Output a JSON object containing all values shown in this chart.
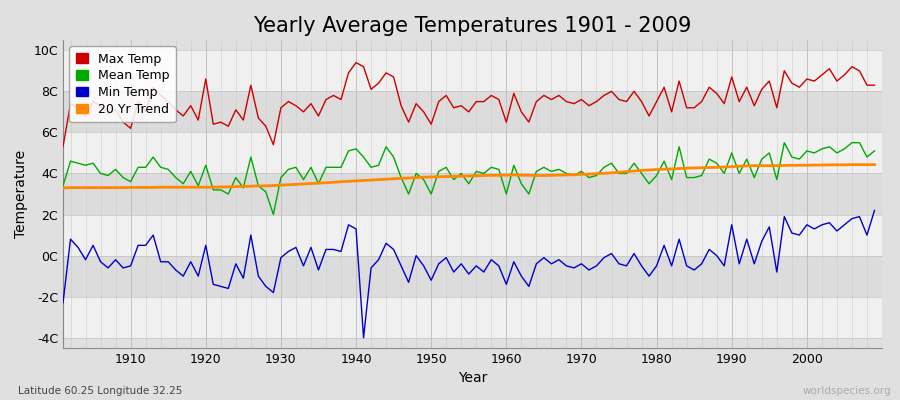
{
  "title": "Yearly Average Temperatures 1901 - 2009",
  "xlabel": "Year",
  "ylabel": "Temperature",
  "bottom_left": "Latitude 60.25 Longitude 32.25",
  "bottom_right": "worldspecies.org",
  "years": [
    1901,
    1902,
    1903,
    1904,
    1905,
    1906,
    1907,
    1908,
    1909,
    1910,
    1911,
    1912,
    1913,
    1914,
    1915,
    1916,
    1917,
    1918,
    1919,
    1920,
    1921,
    1922,
    1923,
    1924,
    1925,
    1926,
    1927,
    1928,
    1929,
    1930,
    1931,
    1932,
    1933,
    1934,
    1935,
    1936,
    1937,
    1938,
    1939,
    1940,
    1941,
    1942,
    1943,
    1944,
    1945,
    1946,
    1947,
    1948,
    1949,
    1950,
    1951,
    1952,
    1953,
    1954,
    1955,
    1956,
    1957,
    1958,
    1959,
    1960,
    1961,
    1962,
    1963,
    1964,
    1965,
    1966,
    1967,
    1968,
    1969,
    1970,
    1971,
    1972,
    1973,
    1974,
    1975,
    1976,
    1977,
    1978,
    1979,
    1980,
    1981,
    1982,
    1983,
    1984,
    1985,
    1986,
    1987,
    1988,
    1989,
    1990,
    1991,
    1992,
    1993,
    1994,
    1995,
    1996,
    1997,
    1998,
    1999,
    2000,
    2001,
    2002,
    2003,
    2004,
    2005,
    2006,
    2007,
    2008,
    2009
  ],
  "max_temp": [
    5.3,
    7.4,
    7.2,
    6.8,
    7.5,
    7.3,
    6.9,
    7.1,
    6.5,
    6.2,
    7.5,
    7.0,
    8.2,
    7.8,
    7.5,
    7.1,
    6.8,
    7.3,
    6.6,
    8.6,
    6.4,
    6.5,
    6.3,
    7.1,
    6.6,
    8.3,
    6.7,
    6.3,
    5.4,
    7.2,
    7.5,
    7.3,
    7.0,
    7.4,
    6.8,
    7.6,
    7.8,
    7.6,
    8.9,
    9.4,
    9.2,
    8.1,
    8.4,
    8.9,
    8.7,
    7.3,
    6.5,
    7.4,
    7.0,
    6.4,
    7.5,
    7.8,
    7.2,
    7.3,
    7.0,
    7.5,
    7.5,
    7.8,
    7.6,
    6.5,
    7.9,
    7.0,
    6.5,
    7.5,
    7.8,
    7.6,
    7.8,
    7.5,
    7.4,
    7.6,
    7.3,
    7.5,
    7.8,
    8.0,
    7.6,
    7.5,
    8.0,
    7.5,
    6.8,
    7.5,
    8.2,
    7.0,
    8.5,
    7.2,
    7.2,
    7.5,
    8.2,
    7.9,
    7.4,
    8.7,
    7.5,
    8.2,
    7.3,
    8.1,
    8.5,
    7.2,
    9.0,
    8.4,
    8.2,
    8.6,
    8.5,
    8.8,
    9.1,
    8.5,
    8.8,
    9.2,
    9.0,
    8.3,
    8.3
  ],
  "mean_temp": [
    3.4,
    4.6,
    4.5,
    4.4,
    4.5,
    4.0,
    3.9,
    4.2,
    3.8,
    3.6,
    4.3,
    4.3,
    4.8,
    4.3,
    4.2,
    3.8,
    3.5,
    4.1,
    3.4,
    4.4,
    3.2,
    3.2,
    3.0,
    3.8,
    3.3,
    4.8,
    3.4,
    3.1,
    2.0,
    3.8,
    4.2,
    4.3,
    3.7,
    4.3,
    3.5,
    4.3,
    4.3,
    4.3,
    5.1,
    5.2,
    4.8,
    4.3,
    4.4,
    5.3,
    4.8,
    3.8,
    3.0,
    4.0,
    3.7,
    3.0,
    4.1,
    4.3,
    3.7,
    4.0,
    3.5,
    4.1,
    4.0,
    4.3,
    4.2,
    3.0,
    4.4,
    3.5,
    3.0,
    4.1,
    4.3,
    4.1,
    4.2,
    4.0,
    3.9,
    4.1,
    3.8,
    3.9,
    4.3,
    4.5,
    4.0,
    4.0,
    4.5,
    4.0,
    3.5,
    3.9,
    4.6,
    3.7,
    5.3,
    3.8,
    3.8,
    3.9,
    4.7,
    4.5,
    4.0,
    5.0,
    4.0,
    4.7,
    3.8,
    4.7,
    5.0,
    3.7,
    5.5,
    4.8,
    4.7,
    5.1,
    5.0,
    5.2,
    5.3,
    5.0,
    5.2,
    5.5,
    5.5,
    4.8,
    5.1
  ],
  "min_temp": [
    -2.3,
    0.8,
    0.4,
    -0.2,
    0.5,
    -0.3,
    -0.6,
    -0.2,
    -0.6,
    -0.5,
    0.5,
    0.5,
    1.0,
    -0.3,
    -0.3,
    -0.7,
    -1.0,
    -0.3,
    -1.0,
    0.5,
    -1.4,
    -1.5,
    -1.6,
    -0.4,
    -1.1,
    1.0,
    -1.0,
    -1.5,
    -1.8,
    -0.1,
    0.2,
    0.4,
    -0.5,
    0.4,
    -0.7,
    0.3,
    0.3,
    0.2,
    1.5,
    1.3,
    -4.0,
    -0.6,
    -0.2,
    0.6,
    0.3,
    -0.5,
    -1.3,
    0.0,
    -0.5,
    -1.2,
    -0.4,
    -0.1,
    -0.8,
    -0.4,
    -0.9,
    -0.5,
    -0.8,
    -0.2,
    -0.5,
    -1.4,
    -0.3,
    -1.0,
    -1.5,
    -0.4,
    -0.1,
    -0.4,
    -0.2,
    -0.5,
    -0.6,
    -0.4,
    -0.7,
    -0.5,
    -0.1,
    0.1,
    -0.4,
    -0.5,
    0.1,
    -0.5,
    -1.0,
    -0.5,
    0.5,
    -0.5,
    0.8,
    -0.5,
    -0.7,
    -0.4,
    0.3,
    0.0,
    -0.5,
    1.5,
    -0.4,
    0.8,
    -0.4,
    0.7,
    1.4,
    -0.8,
    1.9,
    1.1,
    1.0,
    1.5,
    1.3,
    1.5,
    1.6,
    1.2,
    1.5,
    1.8,
    1.9,
    1.0,
    2.2
  ],
  "trend": [
    3.3,
    3.31,
    3.31,
    3.31,
    3.31,
    3.31,
    3.31,
    3.31,
    3.31,
    3.32,
    3.32,
    3.32,
    3.32,
    3.33,
    3.33,
    3.33,
    3.33,
    3.33,
    3.33,
    3.33,
    3.33,
    3.34,
    3.35,
    3.36,
    3.37,
    3.38,
    3.39,
    3.4,
    3.41,
    3.43,
    3.45,
    3.47,
    3.49,
    3.51,
    3.53,
    3.55,
    3.57,
    3.6,
    3.62,
    3.64,
    3.66,
    3.68,
    3.7,
    3.72,
    3.74,
    3.76,
    3.78,
    3.8,
    3.82,
    3.83,
    3.84,
    3.85,
    3.86,
    3.87,
    3.88,
    3.89,
    3.9,
    3.91,
    3.91,
    3.92,
    3.93,
    3.92,
    3.91,
    3.9,
    3.9,
    3.91,
    3.92,
    3.93,
    3.94,
    3.96,
    3.97,
    3.99,
    4.01,
    4.03,
    4.06,
    4.09,
    4.12,
    4.15,
    4.17,
    4.19,
    4.21,
    4.22,
    4.24,
    4.26,
    4.27,
    4.28,
    4.29,
    4.3,
    4.31,
    4.33,
    4.35,
    4.37,
    4.38,
    4.38,
    4.38,
    4.38,
    4.39,
    4.4,
    4.4,
    4.4,
    4.41,
    4.41,
    4.42,
    4.42,
    4.42,
    4.43,
    4.43,
    4.43,
    4.43
  ],
  "max_color": "#cc0000",
  "mean_color": "#00aa00",
  "min_color": "#0000cc",
  "trend_color": "#ff8800",
  "bg_color": "#e0e0e0",
  "band_light": "#f0f0f0",
  "band_dark": "#dcdcdc",
  "ylim": [
    -4.5,
    10.5
  ],
  "yticks": [
    -4,
    -2,
    0,
    2,
    4,
    6,
    8,
    10
  ],
  "ytick_labels": [
    "-4C",
    "-2C",
    "0C",
    "2C",
    "4C",
    "6C",
    "8C",
    "10C"
  ],
  "xticks": [
    1910,
    1920,
    1930,
    1940,
    1950,
    1960,
    1970,
    1980,
    1990,
    2000
  ],
  "title_fontsize": 15,
  "label_fontsize": 10,
  "legend_fontsize": 9,
  "tick_fontsize": 9
}
